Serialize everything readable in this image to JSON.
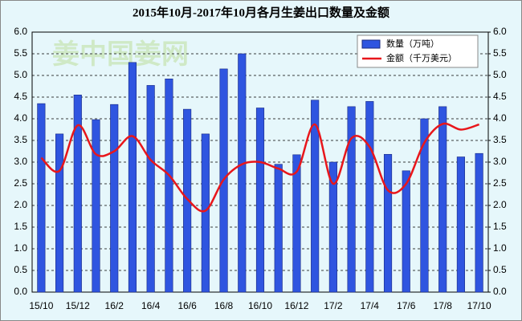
{
  "chart_data": {
    "type": "bar_line",
    "title": "2015年10月-2017年10月各月生姜出口数量及金额",
    "watermark": "姜中国姜网",
    "categories": [
      "15/10",
      null,
      "15/12",
      null,
      "16/2",
      null,
      "16/4",
      null,
      "16/6",
      null,
      "16/8",
      null,
      "16/10",
      null,
      "16/12",
      null,
      "17/2",
      null,
      "17/4",
      null,
      "17/6",
      null,
      "17/8",
      null,
      "17/10"
    ],
    "series": [
      {
        "name": "数量（万吨）",
        "type": "bar",
        "color": "#2f55e0",
        "values": [
          4.35,
          3.65,
          4.55,
          3.98,
          4.33,
          5.3,
          4.77,
          4.92,
          4.22,
          3.65,
          5.15,
          5.5,
          4.25,
          2.95,
          3.17,
          4.43,
          3.0,
          4.28,
          4.4,
          3.18,
          2.8,
          4.0,
          4.28,
          3.12,
          3.2
        ]
      },
      {
        "name": "金额（千万美元）",
        "type": "line",
        "axis": "y2",
        "color": "#e8161b",
        "values": [
          3.1,
          2.8,
          3.85,
          3.18,
          3.25,
          3.6,
          3.05,
          2.7,
          2.15,
          1.88,
          2.6,
          2.95,
          3.0,
          2.85,
          2.78,
          3.87,
          2.5,
          3.55,
          3.35,
          2.35,
          2.5,
          3.45,
          3.88,
          3.75,
          3.87
        ]
      }
    ],
    "ylim": [
      0,
      6
    ],
    "yticks": [
      {
        "value": 0,
        "label": "0.0"
      },
      {
        "value": 0.5,
        "label": "0.5"
      },
      {
        "value": 1,
        "label": "1.0"
      },
      {
        "value": 1.5,
        "label": "1.5"
      },
      {
        "value": 2,
        "label": "2.0"
      },
      {
        "value": 2.5,
        "label": "2.5"
      },
      {
        "value": 3,
        "label": "3.0"
      },
      {
        "value": 3.5,
        "label": "3.5"
      },
      {
        "value": 4,
        "label": "4.0"
      },
      {
        "value": 4.5,
        "label": "4.5"
      },
      {
        "value": 5,
        "label": "5.0"
      },
      {
        "value": 5.5,
        "label": "5.5"
      },
      {
        "value": 6,
        "label": "6.0"
      }
    ],
    "y2lim": [
      0,
      6
    ],
    "y2ticks": [
      {
        "value": 0,
        "label": "0.0"
      },
      {
        "value": 0.5,
        "label": "0.5"
      },
      {
        "value": 1,
        "label": "1.0"
      },
      {
        "value": 1.5,
        "label": "1.5"
      },
      {
        "value": 2,
        "label": "2.0"
      },
      {
        "value": 2.5,
        "label": "2.5"
      },
      {
        "value": 3,
        "label": "3.0"
      },
      {
        "value": 3.5,
        "label": "3.5"
      },
      {
        "value": 4,
        "label": "4.0"
      },
      {
        "value": 4.5,
        "label": "4.5"
      },
      {
        "value": 5,
        "label": "5.0"
      },
      {
        "value": 5.5,
        "label": "5.5"
      },
      {
        "value": 6,
        "label": "6.0"
      }
    ],
    "grid": true,
    "legend": "top-right"
  }
}
